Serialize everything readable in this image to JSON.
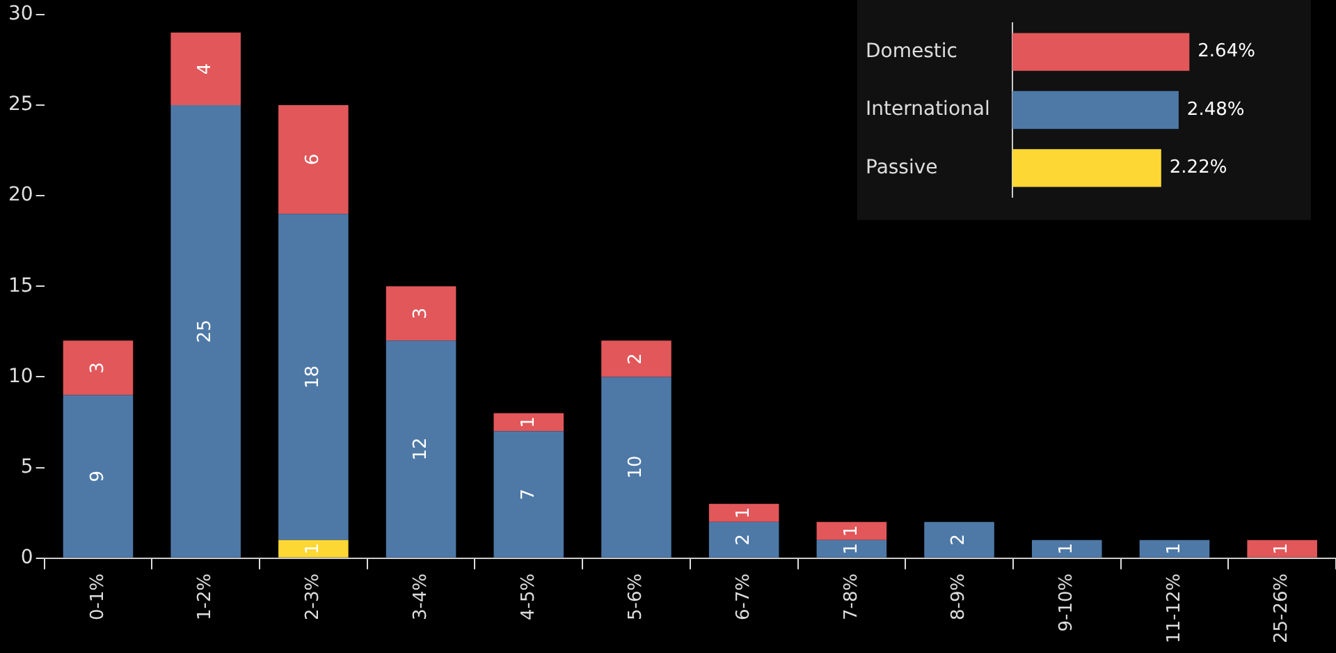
{
  "chart_data": [
    {
      "type": "bar",
      "stacked": true,
      "categories": [
        "0-1%",
        "1-2%",
        "2-3%",
        "3-4%",
        "4-5%",
        "5-6%",
        "6-7%",
        "7-8%",
        "8-9%",
        "9-10%",
        "11-12%",
        "25-26%"
      ],
      "series": [
        {
          "color": "#fdd835",
          "values": [
            null,
            null,
            1,
            null,
            null,
            null,
            null,
            null,
            null,
            null,
            null,
            null
          ]
        },
        {
          "color": "#4e79a7",
          "values": [
            9,
            25,
            18,
            12,
            7,
            10,
            2,
            1,
            2,
            1,
            1,
            null
          ]
        },
        {
          "color": "#e1575a",
          "values": [
            3,
            4,
            6,
            3,
            1,
            2,
            1,
            1,
            null,
            null,
            null,
            1
          ]
        }
      ],
      "ylim": [
        0,
        30
      ],
      "yticks": [
        0,
        5,
        10,
        15,
        20,
        25,
        30
      ],
      "grid": false,
      "legend": false,
      "data_labels": true
    },
    {
      "type": "bar",
      "orientation": "horizontal",
      "categories": [
        "Domestic",
        "International",
        "Passive"
      ],
      "values": [
        2.64,
        2.48,
        2.22
      ],
      "colors": [
        "#e1575a",
        "#4e79a7",
        "#fdd835"
      ],
      "value_labels": [
        "2.64%",
        "2.48%",
        "2.22%"
      ],
      "tick_labels": "y",
      "grid": false,
      "legend": false
    }
  ]
}
